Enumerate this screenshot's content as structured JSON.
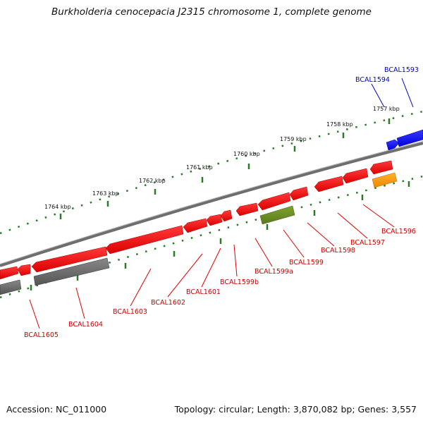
{
  "title": "Burkholderia cenocepacia J2315 chromosome 1, complete genome",
  "footer": {
    "accession": "Accession: NC_011000",
    "topology": "Topology: circular; Length: 3,870,082 bp; Genes: 3,557"
  },
  "colors": {
    "backbone": "#777777",
    "tick": "#2a7a2a",
    "red_gene": "#ee1111",
    "blue_gene": "#1111ee",
    "gray_gene": "#666666",
    "olive_gene": "#6b8e23",
    "orange_gene": "#ff9900",
    "red_label": "#cc0000",
    "blue_label": "#0000cc"
  },
  "scale_labels": [
    "1764 kbp",
    "1763 kbp",
    "1762 kbp",
    "1761 kbp",
    "1760 kbp",
    "1759 kbp",
    "1758 kbp",
    "1757 kbp"
  ],
  "genes": [
    {
      "id": "BCAL1593",
      "color": "blue",
      "strand": "+"
    },
    {
      "id": "BCAL1594",
      "color": "blue",
      "strand": "-"
    },
    {
      "id": "BCAL1596",
      "color": "red",
      "strand": "-"
    },
    {
      "id": "BCAL1597",
      "color": "red",
      "strand": "-"
    },
    {
      "id": "BCAL1598",
      "color": "red",
      "strand": "-"
    },
    {
      "id": "BCAL1599",
      "color": "red",
      "strand": "-"
    },
    {
      "id": "BCAL1599a",
      "color": "red",
      "strand": "-"
    },
    {
      "id": "BCAL1599b",
      "color": "red",
      "strand": "-"
    },
    {
      "id": "BCAL1601",
      "color": "red",
      "strand": "-"
    },
    {
      "id": "BCAL1602",
      "color": "red",
      "strand": "-"
    },
    {
      "id": "BCAL1603",
      "color": "red",
      "strand": "-"
    },
    {
      "id": "BCAL1604",
      "color": "gray",
      "strand": "+"
    },
    {
      "id": "BCAL1605",
      "color": "gray",
      "strand": "+"
    }
  ],
  "extra_features": [
    {
      "color": "olive",
      "strand": "+"
    },
    {
      "color": "orange",
      "strand": "+"
    },
    {
      "color": "red",
      "strand": "-"
    }
  ]
}
